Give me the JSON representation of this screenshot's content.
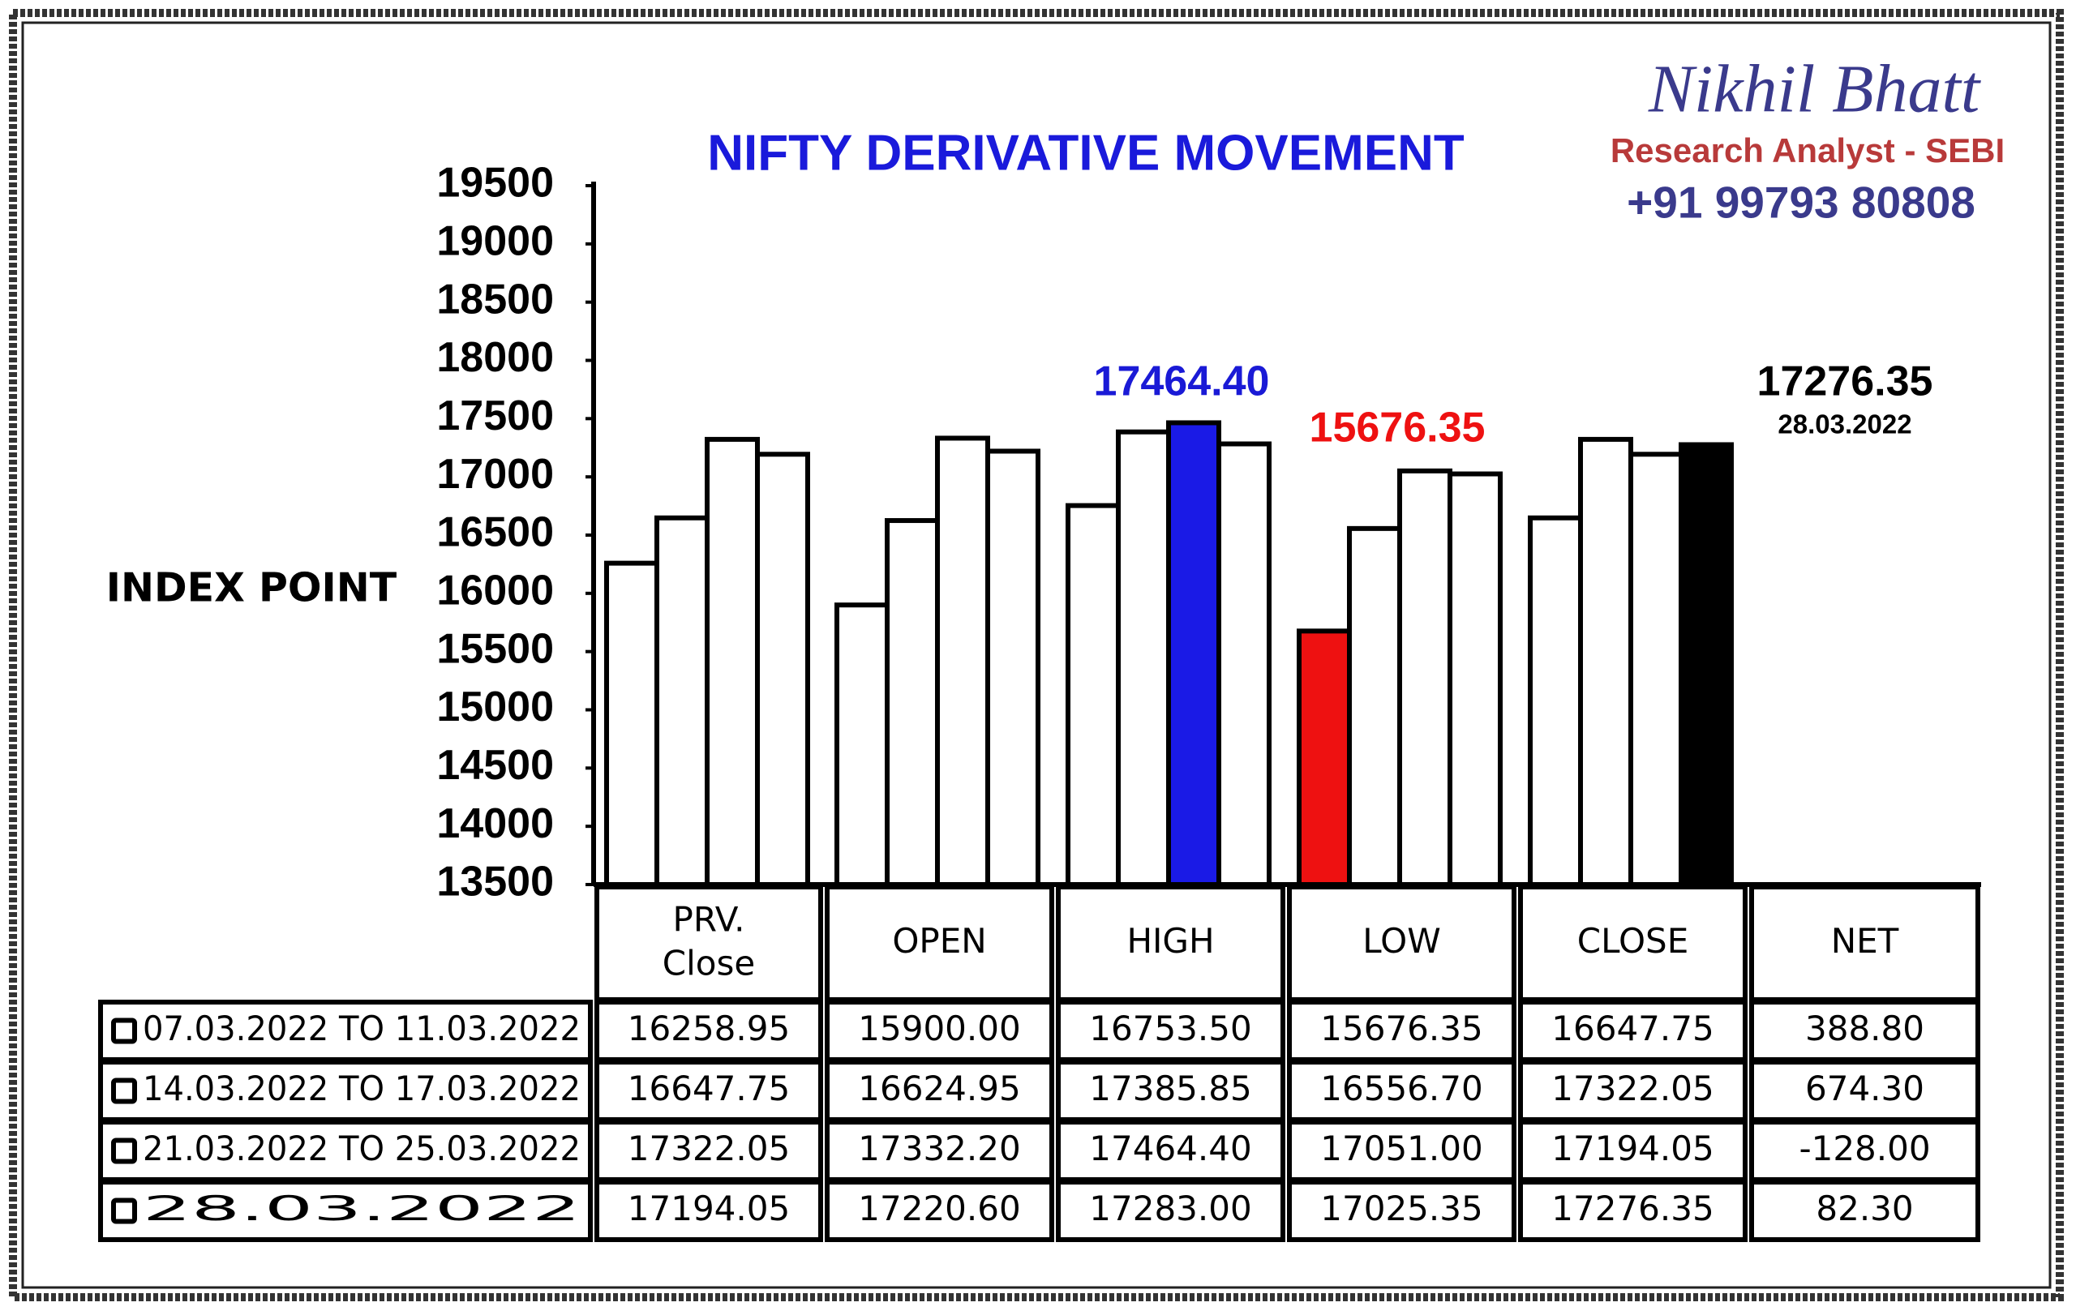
{
  "header": {
    "name": "Nikhil Bhatt",
    "role": "Research Analyst - SEBI",
    "phone": "+91 99793 80808"
  },
  "chart_data": {
    "type": "bar",
    "title": "NIFTY DERIVATIVE MOVEMENT",
    "y_label": "INDEX POINT",
    "categories": [
      "PRV. Close",
      "OPEN",
      "HIGH",
      "LOW",
      "CLOSE"
    ],
    "net_header": "NET",
    "ylim": [
      13500,
      19500
    ],
    "yticks": [
      13500,
      14000,
      14500,
      15000,
      15500,
      16000,
      16500,
      17000,
      17500,
      18000,
      18500,
      19000,
      19500
    ],
    "series": [
      {
        "name": "07.03.2022 TO 11.03.2022",
        "values": [
          16258.95,
          15900,
          16753.5,
          15676.35,
          16647.75
        ],
        "value_labels": [
          "16258.95",
          "15900.00",
          "16753.50",
          "15676.35",
          "16647.75"
        ],
        "net": 388.8,
        "net_label": "388.80",
        "colors": [
          "#ffffff",
          "#ffffff",
          "#ffffff",
          "#ee1111",
          "#ffffff"
        ]
      },
      {
        "name": "14.03.2022 TO 17.03.2022",
        "values": [
          16647.75,
          16624.95,
          17385.85,
          16556.7,
          17322.05
        ],
        "value_labels": [
          "16647.75",
          "16624.95",
          "17385.85",
          "16556.70",
          "17322.05"
        ],
        "net": 674.3,
        "net_label": "674.30",
        "colors": [
          "#ffffff",
          "#ffffff",
          "#ffffff",
          "#ffffff",
          "#ffffff"
        ]
      },
      {
        "name": "21.03.2022 TO 25.03.2022",
        "values": [
          17322.05,
          17332.2,
          17464.4,
          17051,
          17194.05
        ],
        "value_labels": [
          "17322.05",
          "17332.20",
          "17464.40",
          "17051.00",
          "17194.05"
        ],
        "net": -128,
        "net_label": "-128.00",
        "colors": [
          "#ffffff",
          "#ffffff",
          "#1a1ae6",
          "#ffffff",
          "#ffffff"
        ]
      },
      {
        "name": "28.03.2022",
        "values": [
          17194.05,
          17220.6,
          17283,
          17025.35,
          17276.35
        ],
        "value_labels": [
          "17194.05",
          "17220.60",
          "17283.00",
          "17025.35",
          "17276.35"
        ],
        "net": 82.3,
        "net_label": "82.30",
        "colors": [
          "#ffffff",
          "#ffffff",
          "#ffffff",
          "#ffffff",
          "#000000"
        ]
      }
    ],
    "annotations": [
      {
        "text": "17464.40",
        "color": "#1a1ad6"
      },
      {
        "text": "15676.35",
        "color": "#ee1111"
      },
      {
        "text": "17276.35",
        "color": "#000000"
      },
      {
        "text": "28.03.2022",
        "color": "#000000"
      }
    ]
  }
}
